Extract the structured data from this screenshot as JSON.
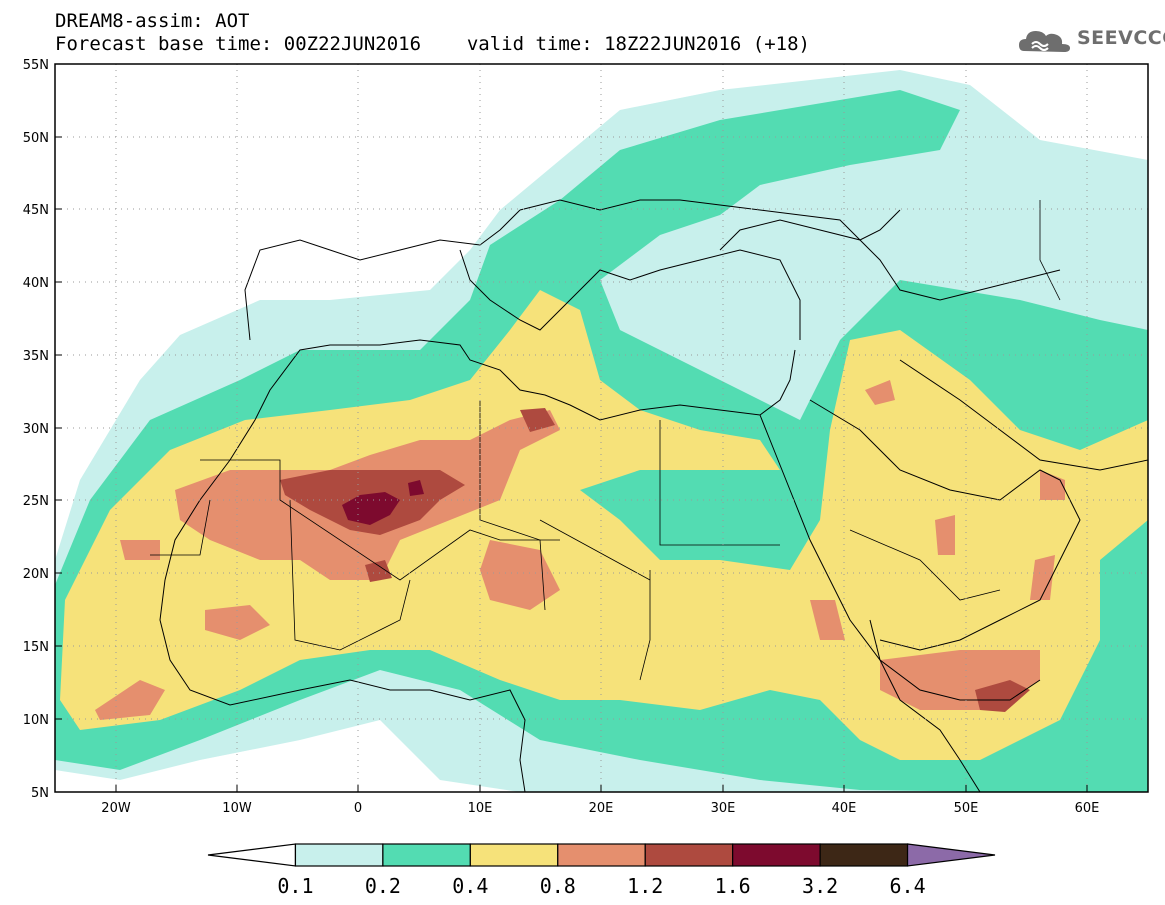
{
  "header": {
    "title": "DREAM8-assim: AOT",
    "base_time_label": "Forecast base time: 00Z22JUN2016",
    "valid_time_label": "valid time: 18Z22JUN2016 (+18)"
  },
  "logo": {
    "text": "SEEVCCC",
    "icon": "cloud-icon"
  },
  "map": {
    "lon_range": [
      -25,
      65
    ],
    "lat_range": [
      5,
      55
    ],
    "lat_ticks": [
      "5N",
      "10N",
      "15N",
      "20N",
      "25N",
      "30N",
      "35N",
      "40N",
      "45N",
      "50N",
      "55N"
    ],
    "lon_ticks": [
      "20W",
      "10W",
      "0",
      "10E",
      "20E",
      "30E",
      "40E",
      "50E",
      "60E"
    ],
    "grid": "dotted"
  },
  "colorbar": {
    "colors": [
      "#ffffff",
      "#c8f0ec",
      "#53dcb2",
      "#f6e27a",
      "#e58f6e",
      "#ae4a3f",
      "#7d0a2e",
      "#3d2716",
      "#8c6aa8"
    ],
    "labels": [
      "0.1",
      "0.2",
      "0.4",
      "0.8",
      "1.2",
      "1.6",
      "3.2",
      "6.4"
    ]
  }
}
